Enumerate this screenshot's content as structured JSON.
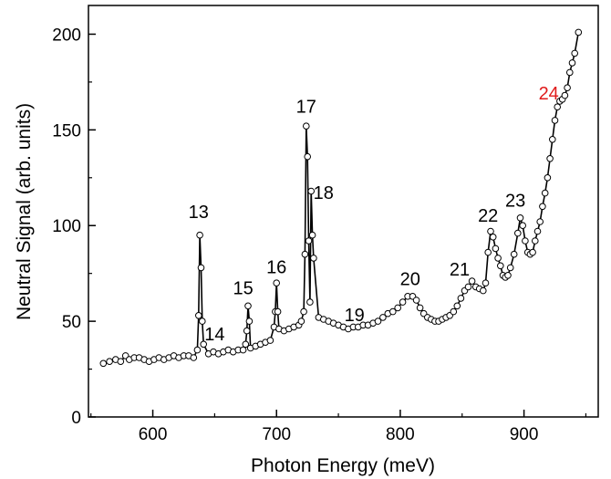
{
  "chart_data": {
    "type": "scatter",
    "title": "",
    "xlabel": "Photon Energy (meV)",
    "ylabel": "Neutral Signal (arb. units)",
    "xlim": [
      548,
      960
    ],
    "ylim": [
      0,
      215
    ],
    "xticks": [
      600,
      700,
      800,
      900
    ],
    "yticks": [
      0,
      50,
      100,
      150,
      200
    ],
    "grid": false,
    "legend": "none",
    "marker": "open-circle",
    "line_color": "#000000",
    "series": [
      {
        "x": [
          560,
          565,
          570,
          574,
          578,
          581,
          585,
          589,
          593,
          597,
          601,
          605,
          609,
          613,
          617,
          621,
          625,
          629,
          633,
          636,
          637,
          638,
          639,
          640,
          641,
          645,
          649,
          653,
          657,
          661,
          665,
          669,
          673,
          675,
          676,
          677,
          678,
          679,
          683,
          687,
          691,
          695,
          698,
          699,
          700,
          701,
          702,
          706,
          710,
          714,
          718,
          720,
          722,
          723,
          724,
          725,
          726,
          727,
          728,
          729,
          730,
          734,
          738,
          742,
          746,
          750,
          754,
          758,
          762,
          766,
          770,
          774,
          778,
          782,
          786,
          790,
          794,
          798,
          802,
          806,
          810,
          813,
          816,
          819,
          822,
          825,
          828,
          831,
          834,
          837,
          840,
          843,
          846,
          849,
          852,
          855,
          858,
          861,
          864,
          867,
          869,
          871,
          873,
          875,
          877,
          879,
          881,
          883,
          885,
          887,
          889,
          892,
          895,
          897,
          899,
          901,
          903,
          905,
          907,
          909,
          911,
          913,
          915,
          917,
          919,
          921,
          923,
          925,
          927,
          929,
          931,
          933,
          935,
          937,
          939,
          941,
          944
        ],
        "y": [
          28,
          29,
          30,
          29,
          32,
          30,
          31,
          31,
          30,
          29,
          30,
          31,
          30,
          31,
          32,
          31,
          32,
          32,
          31,
          35,
          53,
          95,
          78,
          50,
          38,
          33,
          34,
          33,
          34,
          35,
          34,
          35,
          35,
          38,
          45,
          58,
          50,
          36,
          37,
          38,
          39,
          40,
          47,
          55,
          70,
          55,
          46,
          45,
          46,
          47,
          48,
          50,
          55,
          85,
          152,
          136,
          92,
          60,
          118,
          95,
          83,
          52,
          51,
          50,
          49,
          48,
          47,
          46,
          47,
          47,
          48,
          48,
          49,
          50,
          52,
          54,
          55,
          57,
          60,
          63,
          63,
          61,
          57,
          54,
          52,
          51,
          50,
          50,
          51,
          52,
          53,
          55,
          58,
          62,
          66,
          68,
          71,
          68,
          67,
          66,
          70,
          86,
          97,
          94,
          88,
          83,
          79,
          74,
          73,
          74,
          78,
          85,
          96,
          104,
          100,
          92,
          86,
          85,
          86,
          92,
          97,
          102,
          110,
          117,
          125,
          135,
          145,
          155,
          162,
          165,
          166,
          168,
          172,
          180,
          185,
          190,
          201
        ]
      }
    ],
    "peak_labels": [
      {
        "text": "13",
        "x": 637,
        "y": 104,
        "color": "#000000"
      },
      {
        "text": "14",
        "x": 650,
        "y": 40,
        "color": "#000000"
      },
      {
        "text": "15",
        "x": 673,
        "y": 64,
        "color": "#000000"
      },
      {
        "text": "16",
        "x": 700,
        "y": 75,
        "color": "#000000"
      },
      {
        "text": "17",
        "x": 724,
        "y": 159,
        "color": "#000000"
      },
      {
        "text": "18",
        "x": 738,
        "y": 114,
        "color": "#000000"
      },
      {
        "text": "19",
        "x": 763,
        "y": 50,
        "color": "#000000"
      },
      {
        "text": "20",
        "x": 808,
        "y": 69,
        "color": "#000000"
      },
      {
        "text": "21",
        "x": 848,
        "y": 74,
        "color": "#000000"
      },
      {
        "text": "22",
        "x": 871,
        "y": 102,
        "color": "#000000"
      },
      {
        "text": "23",
        "x": 893,
        "y": 110,
        "color": "#000000"
      },
      {
        "text": "24",
        "x": 920,
        "y": 166,
        "color": "#e01b1b"
      }
    ]
  }
}
